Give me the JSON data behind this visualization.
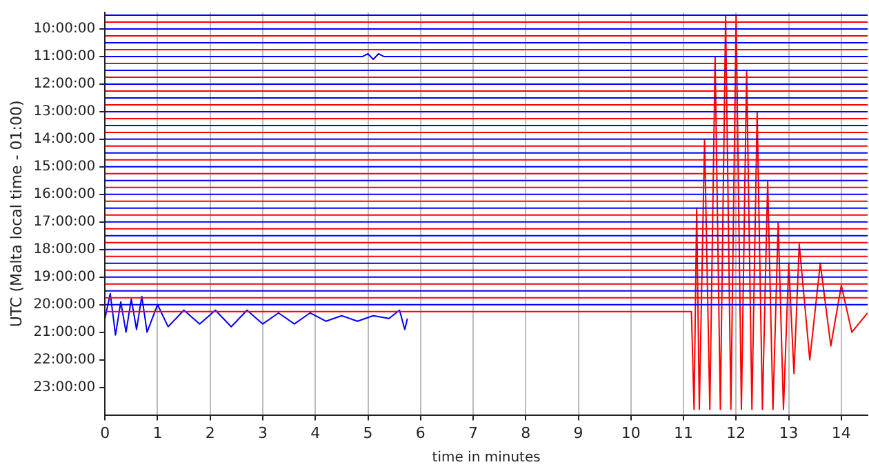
{
  "chart_data": {
    "type": "line",
    "xlabel": "time in minutes",
    "ylabel": "UTC (Malta local time - 01:00)",
    "xlim": [
      0,
      14.5
    ],
    "xticks": [
      0,
      1,
      2,
      3,
      4,
      5,
      6,
      7,
      8,
      9,
      10,
      11,
      12,
      13,
      14
    ],
    "ylim": [
      24,
      9.4
    ],
    "yticks": [
      {
        "value": 10,
        "label": "10:00:00"
      },
      {
        "value": 11,
        "label": "11:00:00"
      },
      {
        "value": 12,
        "label": "12:00:00"
      },
      {
        "value": 13,
        "label": "13:00:00"
      },
      {
        "value": 14,
        "label": "14:00:00"
      },
      {
        "value": 15,
        "label": "15:00:00"
      },
      {
        "value": 16,
        "label": "16:00:00"
      },
      {
        "value": 17,
        "label": "17:00:00"
      },
      {
        "value": 18,
        "label": "18:00:00"
      },
      {
        "value": 19,
        "label": "19:00:00"
      },
      {
        "value": 20,
        "label": "20:00:00"
      },
      {
        "value": 21,
        "label": "21:00:00"
      },
      {
        "value": 22,
        "label": "22:00:00"
      },
      {
        "value": 23,
        "label": "23:00:00"
      }
    ],
    "grid": "x",
    "legend": false,
    "series": [
      {
        "color": "#0000ff",
        "x": [
          0,
          14.5
        ],
        "values": [
          9.5,
          9.5
        ]
      },
      {
        "color": "#ff0000",
        "x": [
          0,
          14.5
        ],
        "values": [
          9.75,
          9.75
        ]
      },
      {
        "color": "#0000ff",
        "x": [
          0,
          14.5
        ],
        "values": [
          10,
          10
        ]
      },
      {
        "color": "#ff0000",
        "x": [
          0,
          14.5
        ],
        "values": [
          10.25,
          10.25
        ]
      },
      {
        "color": "#0000ff",
        "x": [
          0,
          14.5
        ],
        "values": [
          10.5,
          10.5
        ]
      },
      {
        "color": "#ff0000",
        "x": [
          0,
          14.5
        ],
        "values": [
          10.75,
          10.75
        ]
      },
      {
        "color": "#0000ff",
        "x": [
          0,
          4.9,
          5.0,
          5.1,
          5.2,
          5.3,
          14.5
        ],
        "values": [
          11,
          11,
          10.9,
          11.1,
          10.9,
          11,
          11
        ]
      },
      {
        "color": "#ff0000",
        "x": [
          0,
          14.5
        ],
        "values": [
          11.25,
          11.25
        ]
      },
      {
        "color": "#0000ff",
        "x": [
          0,
          14.5
        ],
        "values": [
          11.5,
          11.5
        ]
      },
      {
        "color": "#ff0000",
        "x": [
          0,
          14.5
        ],
        "values": [
          11.75,
          11.75
        ]
      },
      {
        "color": "#0000ff",
        "x": [
          0,
          14.5
        ],
        "values": [
          12,
          12
        ]
      },
      {
        "color": "#ff0000",
        "x": [
          0,
          14.5
        ],
        "values": [
          12.25,
          12.25
        ]
      },
      {
        "color": "#0000ff",
        "x": [
          0,
          14.5
        ],
        "values": [
          12.5,
          12.5
        ]
      },
      {
        "color": "#ff0000",
        "x": [
          0,
          14.5
        ],
        "values": [
          12.75,
          12.75
        ]
      },
      {
        "color": "#0000ff",
        "x": [
          0,
          14.5
        ],
        "values": [
          13,
          13
        ]
      },
      {
        "color": "#ff0000",
        "x": [
          0,
          14.5
        ],
        "values": [
          13.25,
          13.25
        ]
      },
      {
        "color": "#0000ff",
        "x": [
          0,
          14.5
        ],
        "values": [
          13.5,
          13.5
        ]
      },
      {
        "color": "#ff0000",
        "x": [
          0,
          14.5
        ],
        "values": [
          13.75,
          13.75
        ]
      },
      {
        "color": "#0000ff",
        "x": [
          0,
          14.5
        ],
        "values": [
          14,
          14
        ]
      },
      {
        "color": "#ff0000",
        "x": [
          0,
          14.5
        ],
        "values": [
          14.25,
          14.25
        ]
      },
      {
        "color": "#0000ff",
        "x": [
          0,
          14.5
        ],
        "values": [
          14.5,
          14.5
        ]
      },
      {
        "color": "#ff0000",
        "x": [
          0,
          14.5
        ],
        "values": [
          14.75,
          14.75
        ]
      },
      {
        "color": "#0000ff",
        "x": [
          0,
          14.5
        ],
        "values": [
          15,
          15
        ]
      },
      {
        "color": "#ff0000",
        "x": [
          0,
          14.5
        ],
        "values": [
          15.25,
          15.25
        ]
      },
      {
        "color": "#0000ff",
        "x": [
          0,
          14.5
        ],
        "values": [
          15.5,
          15.5
        ]
      },
      {
        "color": "#ff0000",
        "x": [
          0,
          14.5
        ],
        "values": [
          15.75,
          15.75
        ]
      },
      {
        "color": "#0000ff",
        "x": [
          0,
          14.5
        ],
        "values": [
          16,
          16
        ]
      },
      {
        "color": "#ff0000",
        "x": [
          0,
          14.5
        ],
        "values": [
          16.25,
          16.25
        ]
      },
      {
        "color": "#0000ff",
        "x": [
          0,
          14.5
        ],
        "values": [
          16.5,
          16.5
        ]
      },
      {
        "color": "#ff0000",
        "x": [
          0,
          14.5
        ],
        "values": [
          16.75,
          16.75
        ]
      },
      {
        "color": "#0000ff",
        "x": [
          0,
          14.5
        ],
        "values": [
          17,
          17
        ]
      },
      {
        "color": "#ff0000",
        "x": [
          0,
          14.5
        ],
        "values": [
          17.25,
          17.25
        ]
      },
      {
        "color": "#0000ff",
        "x": [
          0,
          14.5
        ],
        "values": [
          17.5,
          17.5
        ]
      },
      {
        "color": "#ff0000",
        "x": [
          0,
          14.5
        ],
        "values": [
          17.75,
          17.75
        ]
      },
      {
        "color": "#0000ff",
        "x": [
          0,
          14.5
        ],
        "values": [
          18,
          18
        ]
      },
      {
        "color": "#ff0000",
        "x": [
          0,
          14.5
        ],
        "values": [
          18.25,
          18.25
        ]
      },
      {
        "color": "#0000ff",
        "x": [
          0,
          14.5
        ],
        "values": [
          18.5,
          18.5
        ]
      },
      {
        "color": "#ff0000",
        "x": [
          0,
          14.5
        ],
        "values": [
          18.75,
          18.75
        ]
      },
      {
        "color": "#0000ff",
        "x": [
          0,
          14.5
        ],
        "values": [
          19,
          19
        ]
      },
      {
        "color": "#ff0000",
        "x": [
          0,
          14.5
        ],
        "values": [
          19.25,
          19.25
        ]
      },
      {
        "color": "#0000ff",
        "x": [
          0,
          14.5
        ],
        "values": [
          19.5,
          19.5
        ]
      },
      {
        "color": "#ff0000",
        "x": [
          0,
          14.5
        ],
        "values": [
          19.75,
          19.75
        ]
      },
      {
        "color": "#0000ff",
        "x": [
          0,
          14.5
        ],
        "values": [
          20,
          20
        ]
      },
      {
        "color": "#ff0000",
        "x": [
          0,
          11.15,
          11.2,
          11.25,
          11.3,
          11.4,
          11.5,
          11.6,
          11.7,
          11.8,
          11.9,
          12.0,
          12.1,
          12.2,
          12.3,
          12.4,
          12.5,
          12.6,
          12.7,
          12.8,
          12.9,
          13.0,
          13.1,
          13.2,
          13.4,
          13.6,
          13.8,
          14.0,
          14.2,
          14.5
        ],
        "values": [
          20.25,
          20.25,
          23.8,
          16.5,
          23.8,
          14,
          23.8,
          11,
          23.8,
          9.5,
          23.8,
          9.5,
          23.8,
          11.5,
          23.8,
          13,
          23.8,
          15.5,
          23.8,
          17,
          23.8,
          18.5,
          22.5,
          17.8,
          22,
          18.5,
          21.5,
          19.3,
          21,
          20.3
        ]
      },
      {
        "color": "#0000ff",
        "x": [
          0,
          0.1,
          0.2,
          0.3,
          0.4,
          0.5,
          0.6,
          0.7,
          0.8,
          1.0,
          1.2,
          1.5,
          1.8,
          2.1,
          2.4,
          2.7,
          3.0,
          3.3,
          3.6,
          3.9,
          4.2,
          4.5,
          4.8,
          5.1,
          5.4,
          5.6,
          5.7,
          5.75
        ],
        "values": [
          20.5,
          19.6,
          21.1,
          19.9,
          21.0,
          19.8,
          20.9,
          19.7,
          21.0,
          20.0,
          20.8,
          20.2,
          20.7,
          20.2,
          20.8,
          20.2,
          20.7,
          20.3,
          20.7,
          20.3,
          20.6,
          20.4,
          20.6,
          20.4,
          20.5,
          20.2,
          20.9,
          20.5
        ]
      }
    ]
  }
}
